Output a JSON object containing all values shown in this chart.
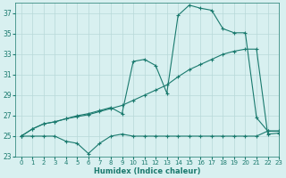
{
  "line1_x": [
    0,
    1,
    2,
    3,
    4,
    5,
    6,
    7,
    8,
    9,
    10,
    11,
    12,
    13,
    14,
    15,
    16,
    17,
    18,
    19,
    20,
    21,
    22,
    23
  ],
  "line1_y": [
    25,
    25,
    25,
    25,
    24.5,
    24.3,
    23.3,
    24.3,
    25,
    25.2,
    25,
    25,
    25,
    25,
    25,
    25,
    25,
    25,
    25,
    25,
    25,
    25,
    25.5,
    25.5
  ],
  "line2_x": [
    0,
    1,
    2,
    3,
    4,
    5,
    6,
    7,
    8,
    9,
    10,
    11,
    12,
    13,
    14,
    15,
    16,
    17,
    18,
    19,
    20,
    21,
    22,
    23
  ],
  "line2_y": [
    25,
    25.7,
    26.2,
    26.4,
    26.7,
    26.9,
    27.1,
    27.4,
    27.7,
    28.0,
    28.5,
    29.0,
    29.5,
    30.0,
    30.8,
    31.5,
    32.0,
    32.5,
    33.0,
    33.3,
    33.5,
    33.5,
    25.2,
    25.3
  ],
  "line3_x": [
    0,
    1,
    2,
    3,
    4,
    5,
    6,
    7,
    8,
    9,
    10,
    11,
    12,
    13,
    14,
    15,
    16,
    17,
    18,
    19,
    20,
    21,
    22,
    23
  ],
  "line3_y": [
    25,
    25.7,
    26.2,
    26.4,
    26.7,
    27.0,
    27.2,
    27.5,
    27.8,
    27.2,
    32.3,
    32.5,
    31.9,
    29.2,
    36.8,
    37.8,
    37.5,
    37.3,
    35.5,
    35.1,
    35.1,
    26.8,
    25.5,
    25.5
  ],
  "line_color": "#1a7a6e",
  "bg_color": "#d8f0f0",
  "grid_color": "#b8d8d8",
  "xlabel": "Humidex (Indice chaleur)",
  "ylim": [
    23,
    38
  ],
  "xlim": [
    -0.5,
    23
  ],
  "yticks": [
    23,
    25,
    27,
    29,
    31,
    33,
    35,
    37
  ],
  "xticks": [
    0,
    1,
    2,
    3,
    4,
    5,
    6,
    7,
    8,
    9,
    10,
    11,
    12,
    13,
    14,
    15,
    16,
    17,
    18,
    19,
    20,
    21,
    22,
    23
  ],
  "marker": "+",
  "markersize": 3,
  "linewidth": 0.8,
  "tick_fontsize": 5.0,
  "xlabel_fontsize": 6.0
}
